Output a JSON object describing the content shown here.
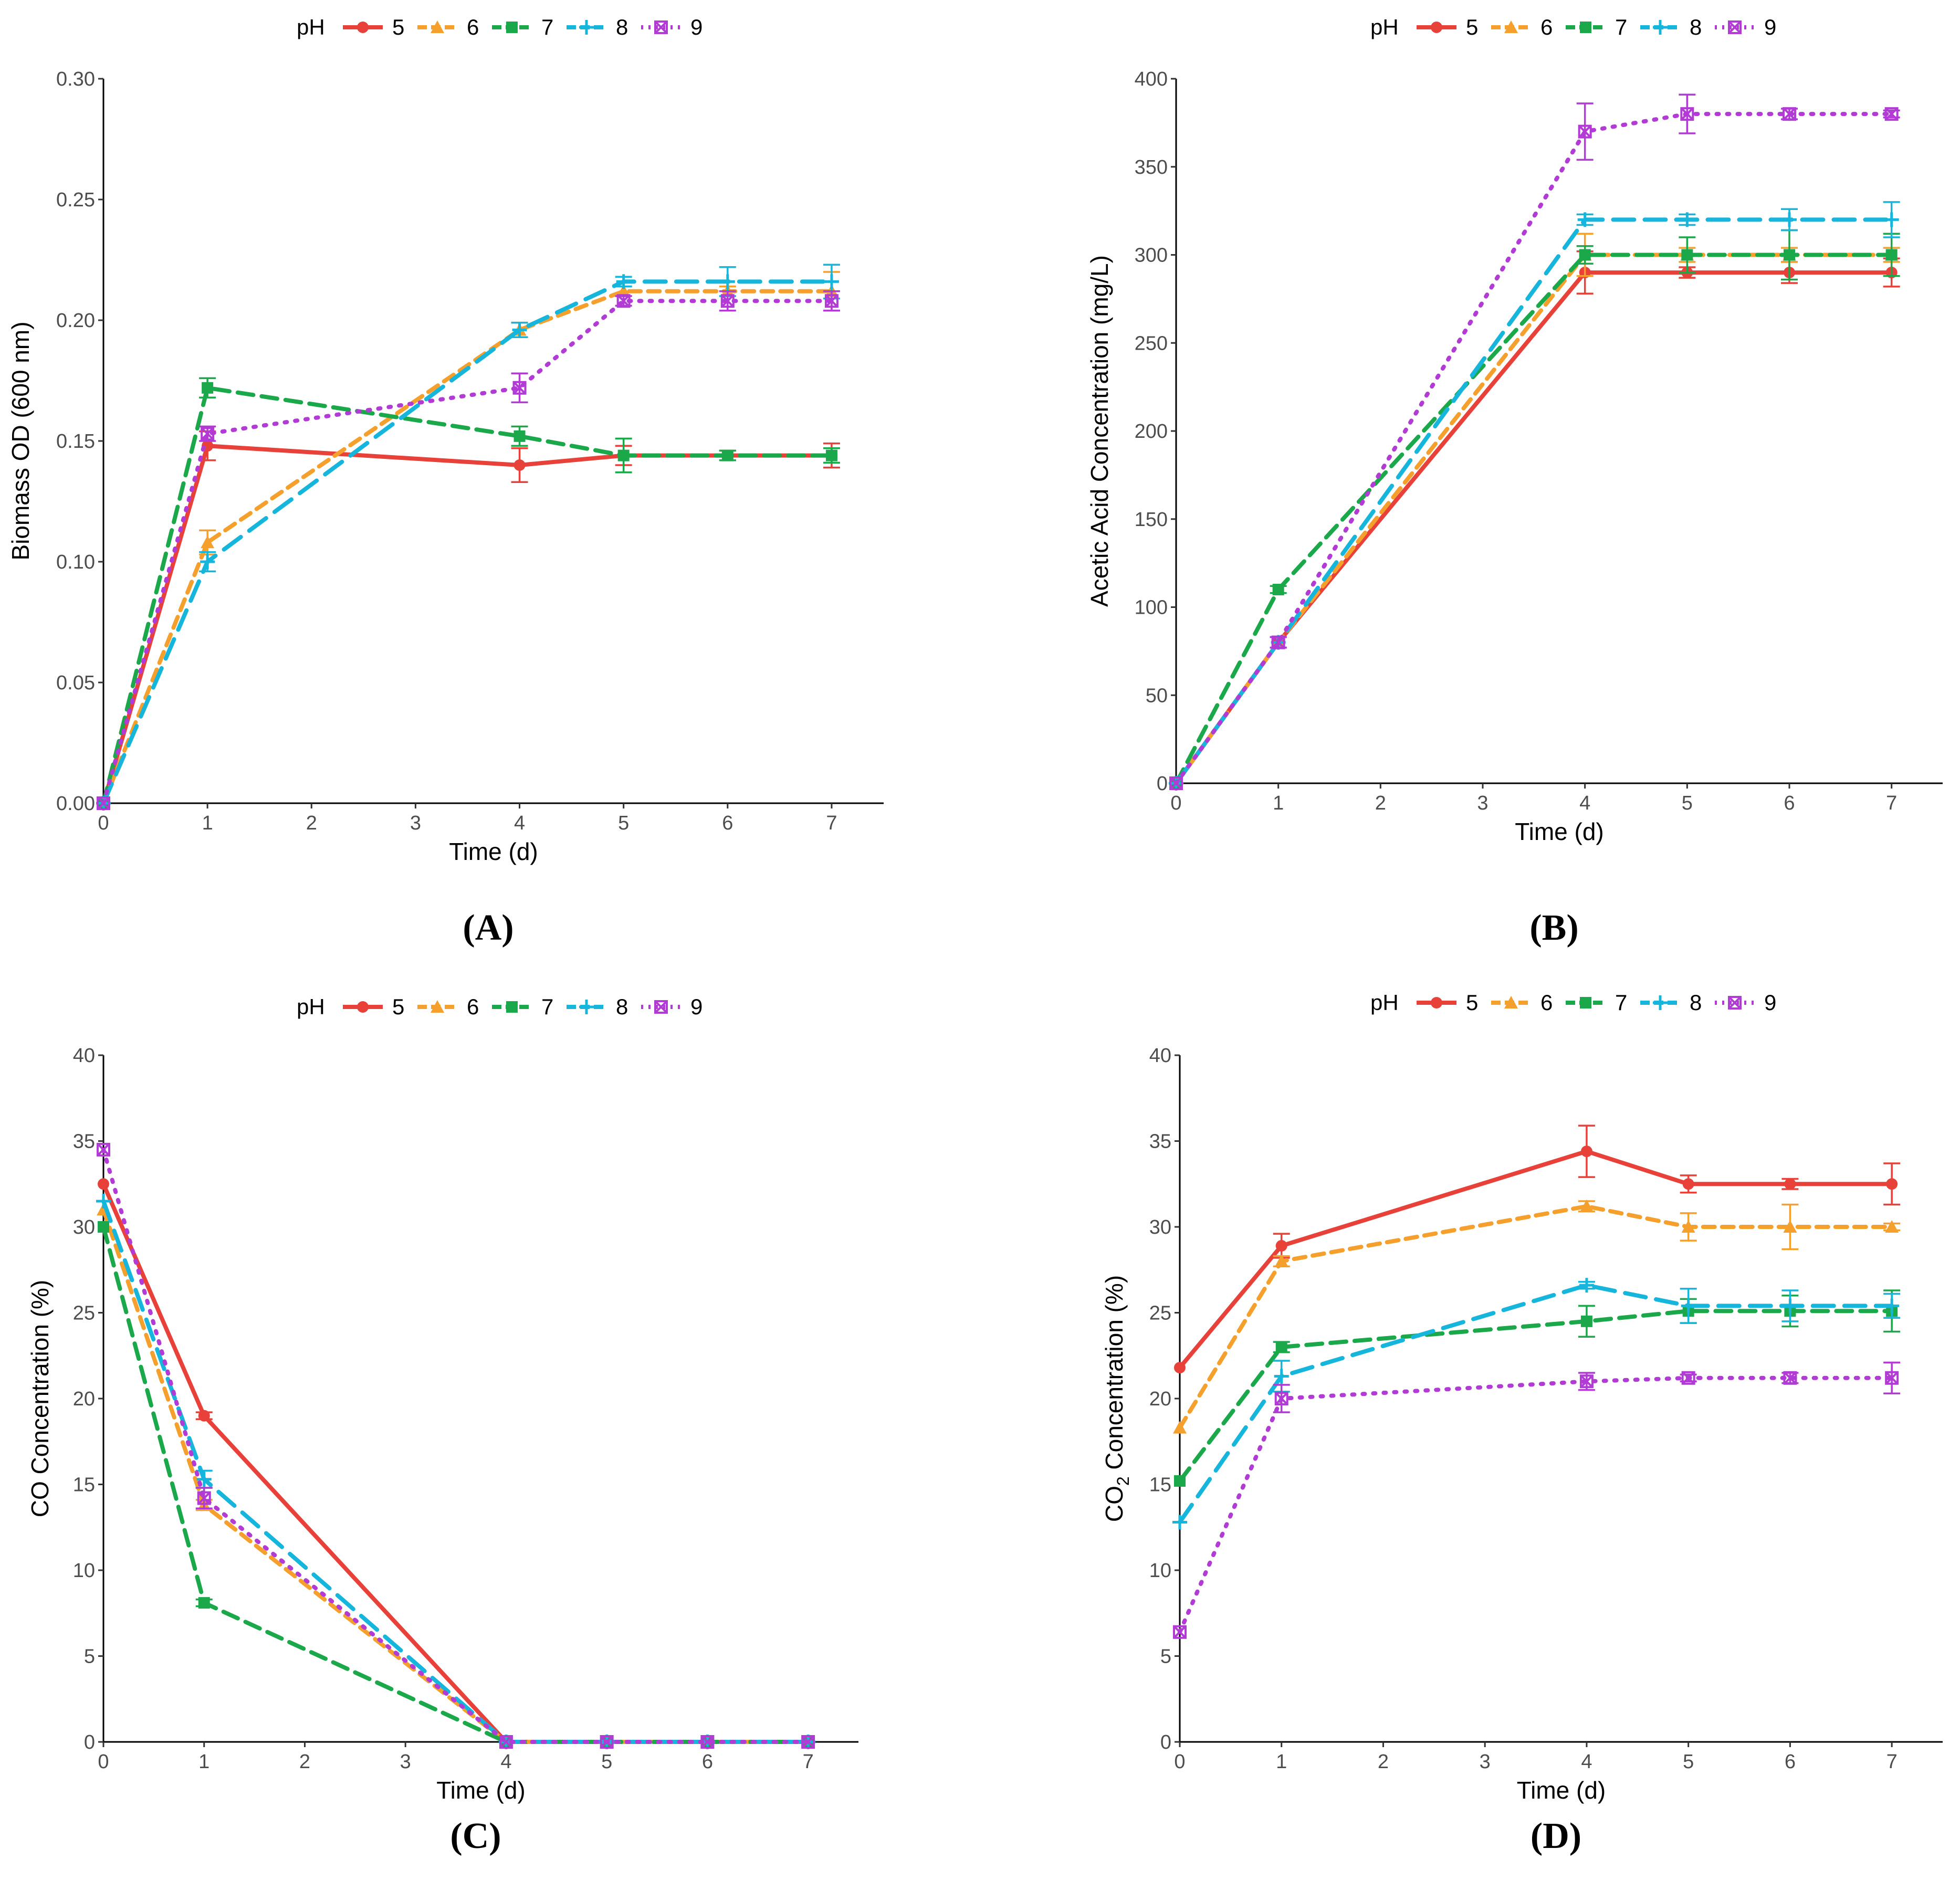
{
  "legend": {
    "title": "pH",
    "entries": [
      {
        "label": "5",
        "color": "#e8413a",
        "dash": "solid",
        "marker": "circle"
      },
      {
        "label": "6",
        "color": "#f5a02c",
        "dash": "dashed",
        "marker": "triangle"
      },
      {
        "label": "7",
        "color": "#1ba84a",
        "dash": "longdash",
        "marker": "square"
      },
      {
        "label": "8",
        "color": "#16b6dc",
        "dash": "longdash2",
        "marker": "cross"
      },
      {
        "label": "9",
        "color": "#b13bd4",
        "dash": "dotted",
        "marker": "boxx"
      }
    ]
  },
  "chart_data": [
    {
      "panel": "(A)",
      "type": "line",
      "xlabel": "Time (d)",
      "ylabel": "Biomass OD (600 nm)",
      "xlim": [
        0,
        7.5
      ],
      "ylim": [
        0,
        0.3
      ],
      "xticks": [
        0,
        1,
        2,
        3,
        4,
        5,
        6,
        7
      ],
      "yticks": [
        0.0,
        0.05,
        0.1,
        0.15,
        0.2,
        0.25,
        0.3
      ],
      "ytick_labels": [
        "0.00",
        "0.05",
        "0.10",
        "0.15",
        "0.20",
        "0.25",
        "0.30"
      ],
      "x": [
        0,
        1,
        4,
        5,
        6,
        7
      ],
      "series": [
        {
          "name": "5",
          "values": [
            0.0,
            0.148,
            0.14,
            0.144,
            0.144,
            0.144
          ],
          "errors": [
            0,
            0.006,
            0.007,
            0.004,
            0.002,
            0.005
          ]
        },
        {
          "name": "6",
          "values": [
            0.0,
            0.108,
            0.196,
            0.212,
            0.212,
            0.212
          ],
          "errors": [
            0,
            0.005,
            0.003,
            0.002,
            0.002,
            0.008
          ]
        },
        {
          "name": "7",
          "values": [
            0.0,
            0.172,
            0.152,
            0.144,
            0.144,
            0.144
          ],
          "errors": [
            0,
            0.004,
            0.004,
            0.007,
            0.002,
            0.003
          ]
        },
        {
          "name": "8",
          "values": [
            0.0,
            0.1,
            0.196,
            0.216,
            0.216,
            0.216
          ],
          "errors": [
            0,
            0.004,
            0.003,
            0.002,
            0.006,
            0.007
          ]
        },
        {
          "name": "9",
          "values": [
            0.0,
            0.153,
            0.172,
            0.208,
            0.208,
            0.208
          ],
          "errors": [
            0,
            0.003,
            0.006,
            0.002,
            0.004,
            0.004
          ]
        }
      ]
    },
    {
      "panel": "(B)",
      "type": "line",
      "xlabel": "Time (d)",
      "ylabel": "Acetic Acid Concentration (mg/L)",
      "xlim": [
        0,
        7.5
      ],
      "ylim": [
        0,
        400
      ],
      "xticks": [
        0,
        1,
        2,
        3,
        4,
        5,
        6,
        7
      ],
      "yticks": [
        0,
        50,
        100,
        150,
        200,
        250,
        300,
        350,
        400
      ],
      "ytick_labels": [
        "0",
        "50",
        "100",
        "150",
        "200",
        "250",
        "300",
        "350",
        "400"
      ],
      "x": [
        0,
        1,
        4,
        5,
        6,
        7
      ],
      "series": [
        {
          "name": "5",
          "values": [
            0,
            80,
            290,
            290,
            290,
            290
          ],
          "errors": [
            0,
            3,
            12,
            3,
            6,
            8
          ]
        },
        {
          "name": "6",
          "values": [
            0,
            80,
            300,
            300,
            300,
            300
          ],
          "errors": [
            0,
            3,
            12,
            4,
            4,
            4
          ]
        },
        {
          "name": "7",
          "values": [
            0,
            110,
            300,
            300,
            300,
            300
          ],
          "errors": [
            0,
            2,
            5,
            10,
            14,
            12
          ]
        },
        {
          "name": "8",
          "values": [
            0,
            80,
            320,
            320,
            320,
            320
          ],
          "errors": [
            0,
            3,
            3,
            3,
            6,
            10
          ]
        },
        {
          "name": "9",
          "values": [
            0,
            80,
            370,
            380,
            380,
            380
          ],
          "errors": [
            0,
            3,
            16,
            11,
            3,
            2
          ]
        }
      ]
    },
    {
      "panel": "(C)",
      "type": "line",
      "xlabel": "Time (d)",
      "ylabel": "CO Concentration (%)",
      "xlim": [
        0,
        7.5
      ],
      "ylim": [
        0,
        40
      ],
      "xticks": [
        0,
        1,
        2,
        3,
        4,
        5,
        6,
        7
      ],
      "yticks": [
        0,
        5,
        10,
        15,
        20,
        25,
        30,
        35,
        40
      ],
      "ytick_labels": [
        "0",
        "5",
        "10",
        "15",
        "20",
        "25",
        "30",
        "35",
        "40"
      ],
      "x": [
        0,
        1,
        4,
        5,
        6,
        7
      ],
      "series": [
        {
          "name": "5",
          "values": [
            32.5,
            19.0,
            0,
            0,
            0,
            0
          ],
          "errors": [
            0,
            0.2,
            0,
            0,
            0,
            0
          ]
        },
        {
          "name": "6",
          "values": [
            31.0,
            13.8,
            0,
            0,
            0,
            0
          ],
          "errors": [
            0,
            0.3,
            0,
            0,
            0,
            0
          ]
        },
        {
          "name": "7",
          "values": [
            30.0,
            8.1,
            0,
            0,
            0,
            0
          ],
          "errors": [
            0,
            0.2,
            0,
            0,
            0,
            0
          ]
        },
        {
          "name": "8",
          "values": [
            31.5,
            15.3,
            0,
            0,
            0,
            0
          ],
          "errors": [
            0,
            0.5,
            0,
            0,
            0,
            0
          ]
        },
        {
          "name": "9",
          "values": [
            34.5,
            14.2,
            0,
            0,
            0,
            0
          ],
          "errors": [
            0,
            0.6,
            0,
            0,
            0,
            0
          ]
        }
      ]
    },
    {
      "panel": "(D)",
      "type": "line",
      "xlabel": "Time (d)",
      "ylabel_main": "CO",
      "ylabel_sub": "2",
      "ylabel_rest": " Concentration (%)",
      "xlim": [
        0,
        7.5
      ],
      "ylim": [
        0,
        40
      ],
      "xticks": [
        0,
        1,
        2,
        3,
        4,
        5,
        6,
        7
      ],
      "yticks": [
        0,
        5,
        10,
        15,
        20,
        25,
        30,
        35,
        40
      ],
      "ytick_labels": [
        "0",
        "5",
        "10",
        "15",
        "20",
        "25",
        "30",
        "35",
        "40"
      ],
      "x": [
        0,
        1,
        4,
        5,
        6,
        7
      ],
      "series": [
        {
          "name": "5",
          "values": [
            21.8,
            28.9,
            34.4,
            32.5,
            32.5,
            32.5
          ],
          "errors": [
            0,
            0.7,
            1.5,
            0.5,
            0.3,
            1.2
          ]
        },
        {
          "name": "6",
          "values": [
            18.3,
            28.0,
            31.2,
            30.0,
            30.0,
            30.0
          ],
          "errors": [
            0,
            0.3,
            0.3,
            0.8,
            1.3,
            0.2
          ]
        },
        {
          "name": "7",
          "values": [
            15.2,
            23.0,
            24.5,
            25.1,
            25.1,
            25.1
          ],
          "errors": [
            0,
            0.3,
            0.9,
            0.7,
            0.9,
            1.2
          ]
        },
        {
          "name": "8",
          "values": [
            12.8,
            21.3,
            26.6,
            25.4,
            25.4,
            25.4
          ],
          "errors": [
            0,
            0.9,
            0.2,
            1.0,
            0.9,
            0.7
          ]
        },
        {
          "name": "9",
          "values": [
            6.4,
            20.0,
            21.0,
            21.2,
            21.2,
            21.2
          ],
          "errors": [
            0,
            0.8,
            0.5,
            0.2,
            0.3,
            0.9
          ]
        }
      ]
    }
  ]
}
